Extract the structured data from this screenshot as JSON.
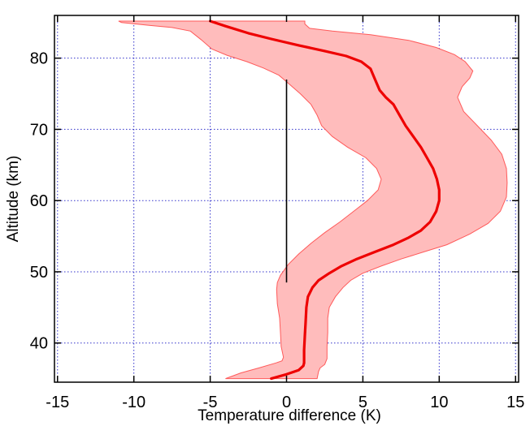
{
  "chart_data": {
    "type": "area",
    "xlabel": "Temperature  difference (K)",
    "ylabel": "Altitude (km)",
    "xlim": [
      -15.2,
      15.2
    ],
    "ylim": [
      34.5,
      86
    ],
    "x_ticks": [
      -15,
      -10,
      -5,
      0,
      5,
      10,
      15
    ],
    "y_ticks": [
      40,
      50,
      60,
      70,
      80
    ],
    "grid": true,
    "grid_style": "dotted-blue",
    "zero_line": true,
    "colors": {
      "mean": "#ee0000",
      "band_fill": "#ffbcbc",
      "band_edge": "#ff5a5a",
      "grid": "#3333cc"
    },
    "series": [
      {
        "role": "mean",
        "points": [
          [
            -5.0,
            85.2
          ],
          [
            -4.0,
            84.5
          ],
          [
            -2.5,
            83.5
          ],
          [
            -1.0,
            82.7
          ],
          [
            0.8,
            81.8
          ],
          [
            2.5,
            81.0
          ],
          [
            3.9,
            80.3
          ],
          [
            4.9,
            79.5
          ],
          [
            5.5,
            78.5
          ],
          [
            5.8,
            77.0
          ],
          [
            6.1,
            75.5
          ],
          [
            6.5,
            74.5
          ],
          [
            7.0,
            73.5
          ],
          [
            7.4,
            72.0
          ],
          [
            7.8,
            70.5
          ],
          [
            8.3,
            69.0
          ],
          [
            8.8,
            67.5
          ],
          [
            9.2,
            66.0
          ],
          [
            9.6,
            64.5
          ],
          [
            9.85,
            63.0
          ],
          [
            10.0,
            61.5
          ],
          [
            10.0,
            60.0
          ],
          [
            9.8,
            58.5
          ],
          [
            9.4,
            57.0
          ],
          [
            8.8,
            55.8
          ],
          [
            8.0,
            54.8
          ],
          [
            7.0,
            53.8
          ],
          [
            5.8,
            52.8
          ],
          [
            4.6,
            51.8
          ],
          [
            3.6,
            50.8
          ],
          [
            2.8,
            49.8
          ],
          [
            2.1,
            48.8
          ],
          [
            1.7,
            47.8
          ],
          [
            1.4,
            46.5
          ],
          [
            1.3,
            45.0
          ],
          [
            1.25,
            43.0
          ],
          [
            1.2,
            41.0
          ],
          [
            1.15,
            39.0
          ],
          [
            1.15,
            37.2
          ],
          [
            1.1,
            36.8
          ],
          [
            0.8,
            36.2
          ],
          [
            0.0,
            35.6
          ],
          [
            -1.0,
            35.0
          ]
        ]
      },
      {
        "role": "band-upper",
        "points": [
          [
            1.2,
            85.2
          ],
          [
            1.2,
            84.8
          ],
          [
            1.5,
            84.2
          ],
          [
            3.0,
            83.8
          ],
          [
            5.5,
            83.3
          ],
          [
            8.0,
            82.5
          ],
          [
            9.8,
            81.5
          ],
          [
            11.0,
            80.5
          ],
          [
            11.7,
            79.5
          ],
          [
            12.2,
            78.2
          ],
          [
            12.0,
            77.2
          ],
          [
            11.5,
            76.0
          ],
          [
            11.2,
            74.5
          ],
          [
            11.6,
            72.5
          ],
          [
            12.5,
            70.5
          ],
          [
            13.4,
            68.5
          ],
          [
            14.1,
            66.5
          ],
          [
            14.4,
            64.5
          ],
          [
            14.45,
            62.5
          ],
          [
            14.4,
            60.5
          ],
          [
            14.0,
            58.5
          ],
          [
            13.2,
            56.8
          ],
          [
            12.0,
            55.3
          ],
          [
            10.5,
            53.8
          ],
          [
            9.0,
            52.8
          ],
          [
            7.5,
            51.8
          ],
          [
            6.2,
            50.8
          ],
          [
            5.0,
            49.8
          ],
          [
            4.2,
            48.8
          ],
          [
            3.7,
            47.8
          ],
          [
            3.2,
            46.5
          ],
          [
            2.8,
            45.0
          ],
          [
            2.7,
            43.5
          ],
          [
            2.7,
            41.5
          ],
          [
            2.65,
            39.5
          ],
          [
            2.65,
            37.8
          ],
          [
            2.5,
            37.0
          ],
          [
            2.2,
            36.5
          ],
          [
            2.1,
            36.0
          ],
          [
            2.0,
            35.0
          ]
        ]
      },
      {
        "role": "band-lower",
        "points": [
          [
            -11.0,
            85.2
          ],
          [
            -10.8,
            85.0
          ],
          [
            -9.0,
            84.6
          ],
          [
            -7.5,
            84.3
          ],
          [
            -6.3,
            83.8
          ],
          [
            -5.6,
            82.6
          ],
          [
            -4.9,
            81.3
          ],
          [
            -3.9,
            80.4
          ],
          [
            -2.6,
            79.5
          ],
          [
            -1.5,
            78.6
          ],
          [
            -0.5,
            77.6
          ],
          [
            0.1,
            76.5
          ],
          [
            0.9,
            75.0
          ],
          [
            1.6,
            73.5
          ],
          [
            2.0,
            72.0
          ],
          [
            2.3,
            70.5
          ],
          [
            3.0,
            69.0
          ],
          [
            4.0,
            67.5
          ],
          [
            5.2,
            66.0
          ],
          [
            5.9,
            64.5
          ],
          [
            6.2,
            63.0
          ],
          [
            6.0,
            61.5
          ],
          [
            5.3,
            60.0
          ],
          [
            4.4,
            58.5
          ],
          [
            3.5,
            57.0
          ],
          [
            2.5,
            55.5
          ],
          [
            1.6,
            54.0
          ],
          [
            0.8,
            52.5
          ],
          [
            0.1,
            51.0
          ],
          [
            -0.4,
            49.5
          ],
          [
            -0.6,
            48.5
          ],
          [
            -0.65,
            47.5
          ],
          [
            -0.6,
            45.5
          ],
          [
            -0.45,
            43.5
          ],
          [
            -0.4,
            41.5
          ],
          [
            -0.35,
            39.5
          ],
          [
            -0.2,
            38.0
          ],
          [
            -0.3,
            37.5
          ],
          [
            -0.7,
            37.2
          ],
          [
            -1.8,
            36.5
          ],
          [
            -3.0,
            35.8
          ],
          [
            -4.0,
            35.0
          ]
        ]
      }
    ]
  }
}
